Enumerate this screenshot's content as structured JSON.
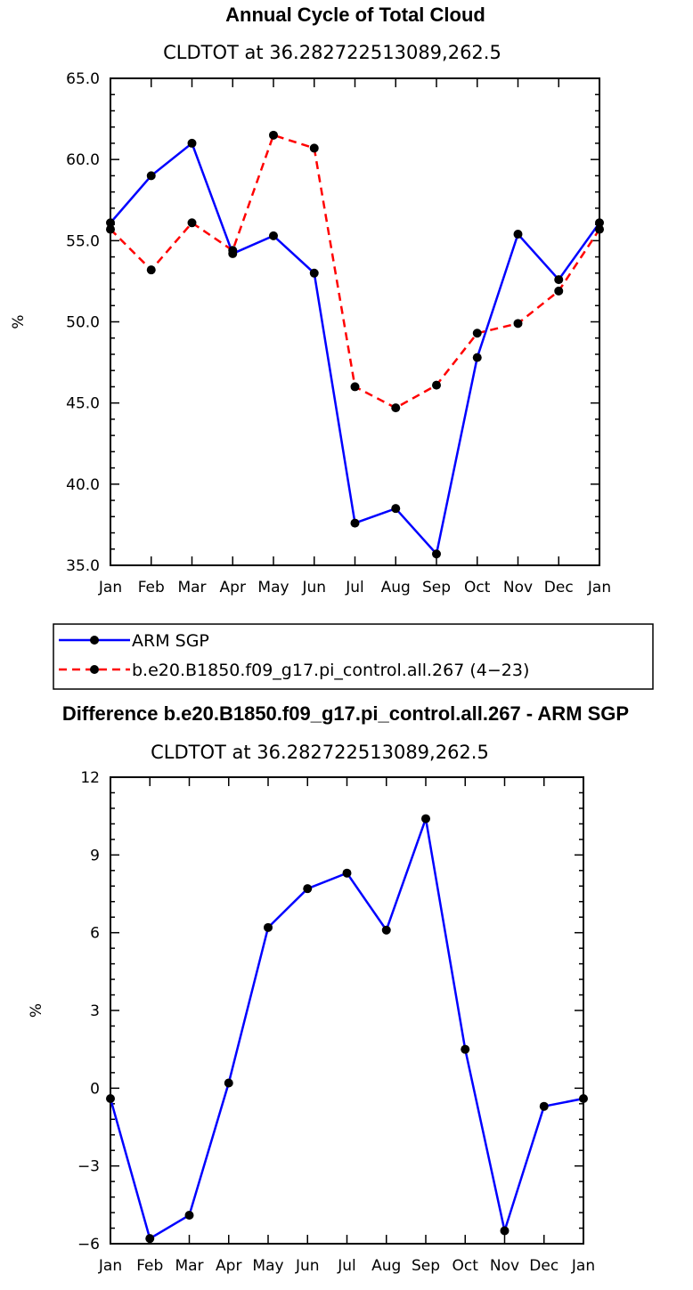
{
  "chart_data": [
    {
      "type": "line",
      "title": "Annual Cycle of Total Cloud",
      "subtitle": "CLDTOT at 36.282722513089,262.5",
      "xlabel": "",
      "ylabel": "%",
      "categories": [
        "Jan",
        "Feb",
        "Mar",
        "Apr",
        "May",
        "Jun",
        "Jul",
        "Aug",
        "Sep",
        "Oct",
        "Nov",
        "Dec",
        "Jan"
      ],
      "ylim": [
        35,
        65
      ],
      "yticks": [
        "35.0",
        "40.0",
        "45.0",
        "50.0",
        "55.0",
        "60.0",
        "65.0"
      ],
      "ytick_values": [
        35,
        40,
        45,
        50,
        55,
        60,
        65
      ],
      "grid": false,
      "legend": "below",
      "series": [
        {
          "name": "ARM SGP",
          "color": "#0000ff",
          "style": "solid",
          "values": [
            56.1,
            59.0,
            61.0,
            54.2,
            55.3,
            53.0,
            37.6,
            38.5,
            35.7,
            47.8,
            55.4,
            52.6,
            56.1
          ]
        },
        {
          "name": "b.e20.B1850.f09_g17.pi_control.all.267 (4−23)",
          "color": "#ff0000",
          "style": "dashed",
          "values": [
            55.7,
            53.2,
            56.1,
            54.4,
            61.5,
            60.7,
            46.0,
            44.7,
            46.1,
            49.3,
            49.9,
            51.9,
            55.7
          ]
        }
      ]
    },
    {
      "type": "line",
      "title": "Difference b.e20.B1850.f09_g17.pi_control.all.267 - ARM SGP",
      "subtitle": "CLDTOT at 36.282722513089,262.5",
      "xlabel": "",
      "ylabel": "%",
      "categories": [
        "Jan",
        "Feb",
        "Mar",
        "Apr",
        "May",
        "Jun",
        "Jul",
        "Aug",
        "Sep",
        "Oct",
        "Nov",
        "Dec",
        "Jan"
      ],
      "ylim": [
        -6,
        12
      ],
      "yticks": [
        "−6",
        "−3",
        "0",
        "3",
        "6",
        "9",
        "12"
      ],
      "ytick_values": [
        -6,
        -3,
        0,
        3,
        6,
        9,
        12
      ],
      "grid": false,
      "series": [
        {
          "color": "#0000ff",
          "style": "solid",
          "values": [
            -0.4,
            -5.8,
            -4.9,
            0.2,
            6.2,
            7.7,
            8.3,
            6.1,
            10.4,
            1.5,
            -5.5,
            -0.7,
            -0.4
          ]
        }
      ]
    }
  ]
}
